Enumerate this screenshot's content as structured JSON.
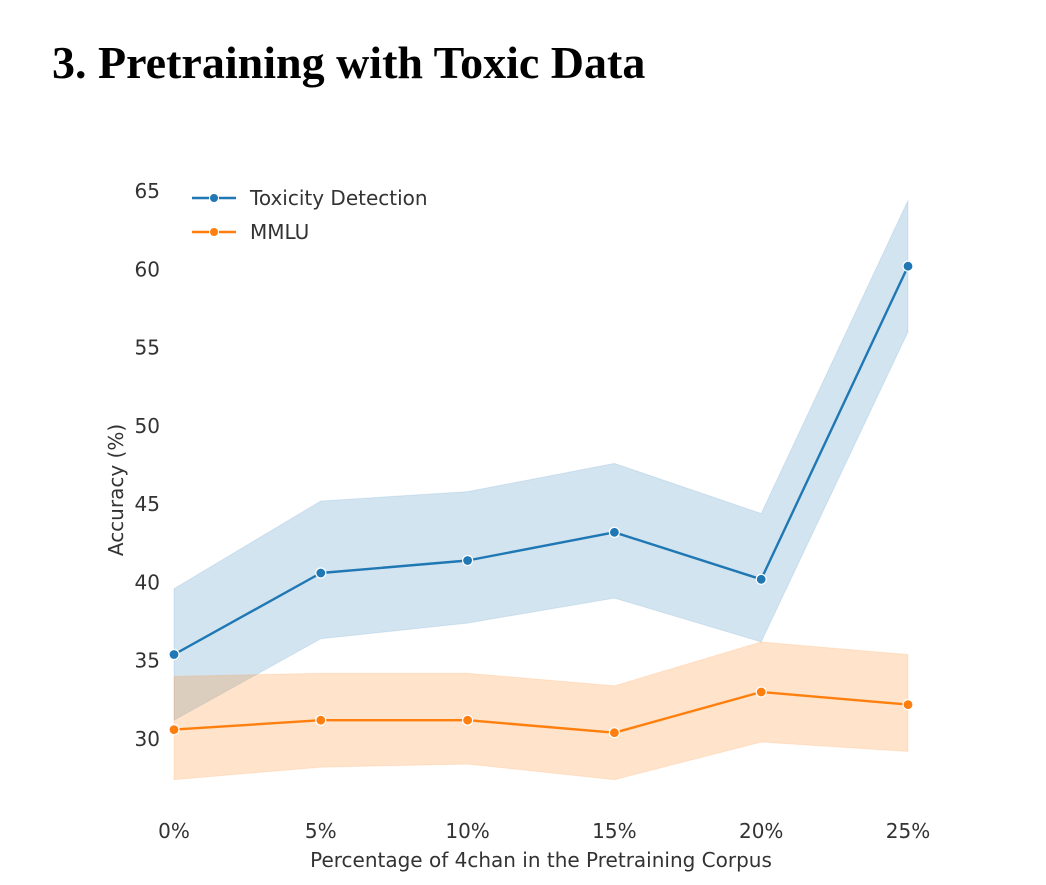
{
  "heading": "3. Pretraining with Toxic Data",
  "chart_data": {
    "type": "line",
    "title": "",
    "xlabel": "Percentage of 4chan in the Pretraining Corpus",
    "ylabel": "Accuracy (%)",
    "categories": [
      "0%",
      "5%",
      "10%",
      "15%",
      "20%",
      "25%"
    ],
    "x_values": [
      0,
      5,
      10,
      15,
      20,
      25
    ],
    "yticks": [
      30,
      35,
      40,
      45,
      50,
      55,
      60,
      65
    ],
    "ylim": [
      26,
      66
    ],
    "grid": false,
    "legend": "top-left",
    "series": [
      {
        "name": "Toxicity Detection",
        "color": "#1f77b4",
        "values": [
          35.4,
          40.6,
          41.4,
          43.2,
          40.2,
          60.2
        ],
        "ci_upper": [
          39.6,
          45.2,
          45.8,
          47.6,
          44.4,
          64.4
        ],
        "ci_lower": [
          31.2,
          36.4,
          37.4,
          39.0,
          36.2,
          56.0
        ]
      },
      {
        "name": "MMLU",
        "color": "#ff7f0e",
        "values": [
          30.6,
          31.2,
          31.2,
          30.4,
          33.0,
          32.2
        ],
        "ci_upper": [
          34.0,
          34.2,
          34.2,
          33.4,
          36.2,
          35.4
        ],
        "ci_lower": [
          27.4,
          28.2,
          28.4,
          27.4,
          29.8,
          29.2
        ]
      }
    ]
  }
}
